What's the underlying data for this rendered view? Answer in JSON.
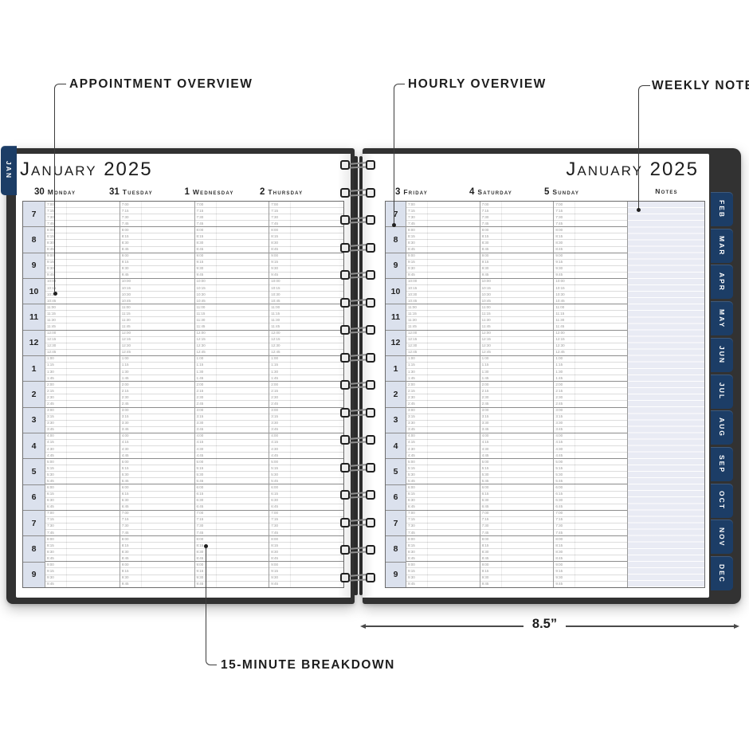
{
  "annotations": {
    "appointment_overview": "APPOINTMENT OVERVIEW",
    "hourly_overview": "HOURLY OVERVIEW",
    "weekly_note": "WEEKLY NOTE",
    "fifteen_minute_breakdown": "15-MINUTE BREAKDOWN",
    "page_width": "8.5”"
  },
  "left_page": {
    "title": "January 2025",
    "month_tab": "JAN",
    "day_headers": [
      {
        "number": "30",
        "name": "Monday"
      },
      {
        "number": "31",
        "name": "Tuesday"
      },
      {
        "number": "1",
        "name": "Wednesday"
      },
      {
        "number": "2",
        "name": "Thursday"
      }
    ]
  },
  "right_page": {
    "title": "January 2025",
    "notes_header": "Notes",
    "day_headers": [
      {
        "number": "3",
        "name": "Friday"
      },
      {
        "number": "4",
        "name": "Saturday"
      },
      {
        "number": "5",
        "name": "Sunday"
      }
    ],
    "month_tabs": [
      "FEB",
      "MAR",
      "APR",
      "MAY",
      "JUN",
      "JUL",
      "AUG",
      "SEP",
      "OCT",
      "NOV",
      "DEC"
    ]
  },
  "schedule": {
    "hour_labels": [
      "7",
      "8",
      "9",
      "10",
      "11",
      "12",
      "1",
      "2",
      "3",
      "4",
      "5",
      "6",
      "7",
      "8",
      "9"
    ],
    "time_slots": [
      "7:00",
      "7:15",
      "7:30",
      "7:45",
      "8:00",
      "8:15",
      "8:30",
      "8:45",
      "9:00",
      "9:15",
      "9:30",
      "9:45",
      "10:00",
      "10:15",
      "10:30",
      "10:45",
      "11:00",
      "11:15",
      "11:30",
      "11:45",
      "12:00",
      "12:15",
      "12:30",
      "12:45",
      "1:00",
      "1:15",
      "1:30",
      "1:45",
      "2:00",
      "2:15",
      "2:30",
      "2:45",
      "3:00",
      "3:15",
      "3:30",
      "3:45",
      "4:00",
      "4:15",
      "4:30",
      "4:45",
      "5:00",
      "5:15",
      "5:30",
      "5:45",
      "6:00",
      "6:15",
      "6:30",
      "6:45",
      "7:00",
      "7:15",
      "7:30",
      "7:45",
      "8:00",
      "8:15",
      "8:30",
      "8:45",
      "9:00",
      "9:15",
      "9:30",
      "9:45"
    ]
  },
  "colors": {
    "tab_navy": "#1c3d66",
    "cover_dark": "#323232",
    "hour_cell_bg": "#dbe1ed",
    "notes_bg": "#e9ebf4"
  }
}
